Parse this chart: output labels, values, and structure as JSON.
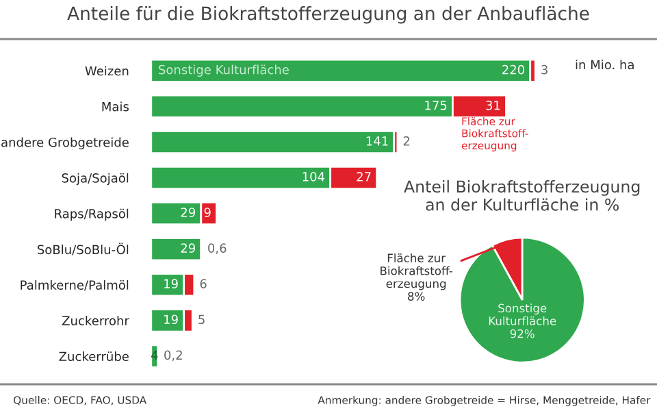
{
  "chart_data": [
    {
      "type": "bar",
      "title": "Anteile für die Biokraftstofferzeugung an der Anbaufläche",
      "orientation": "horizontal",
      "stacked": true,
      "categories": [
        "Weizen",
        "Mais",
        "andere Grobgetreide",
        "Soja/Sojaöl",
        "Raps/Rapsöl",
        "SoBlu/SoBlu-Öl",
        "Palmkerne/Palmöl",
        "Zuckerrohr",
        "Zuckerrübe"
      ],
      "series": [
        {
          "name": "Sonstige Kulturfläche",
          "color": "#2fa84f",
          "values": [
            220,
            175,
            141,
            104,
            29,
            29,
            19,
            19,
            4
          ],
          "value_labels": [
            "220",
            "175",
            "141",
            "104",
            "29",
            "29",
            "19",
            "19",
            "4"
          ]
        },
        {
          "name": "Fläche zur\nBiokraftstoff-\nerzeugung",
          "color": "#e2202a",
          "values": [
            3,
            31,
            2,
            27,
            9,
            0.6,
            6,
            5,
            0.2
          ],
          "value_labels": [
            "3",
            "31",
            "2",
            "27",
            "9",
            "0,6",
            "6",
            "5",
            "0,2"
          ]
        }
      ],
      "annotations": [
        "in Mio. ha",
        "Quelle: OECD, FAO, USDA",
        "Anmerkung: andere Grobgetreide = Hirse, Menggetreide, Hafer"
      ]
    },
    {
      "type": "pie",
      "title": "Anteil Biokraftstofferzeugung\nan der Kulturfläche in %",
      "categories": [
        "Fläche zur\nBiokraftstoff-\nerzeugung",
        "Sonstige\nKulturfläche"
      ],
      "values": [
        8,
        92
      ],
      "colors": [
        "#e2202a",
        "#2fa84f"
      ],
      "value_labels": [
        "8%",
        "92%"
      ]
    }
  ]
}
